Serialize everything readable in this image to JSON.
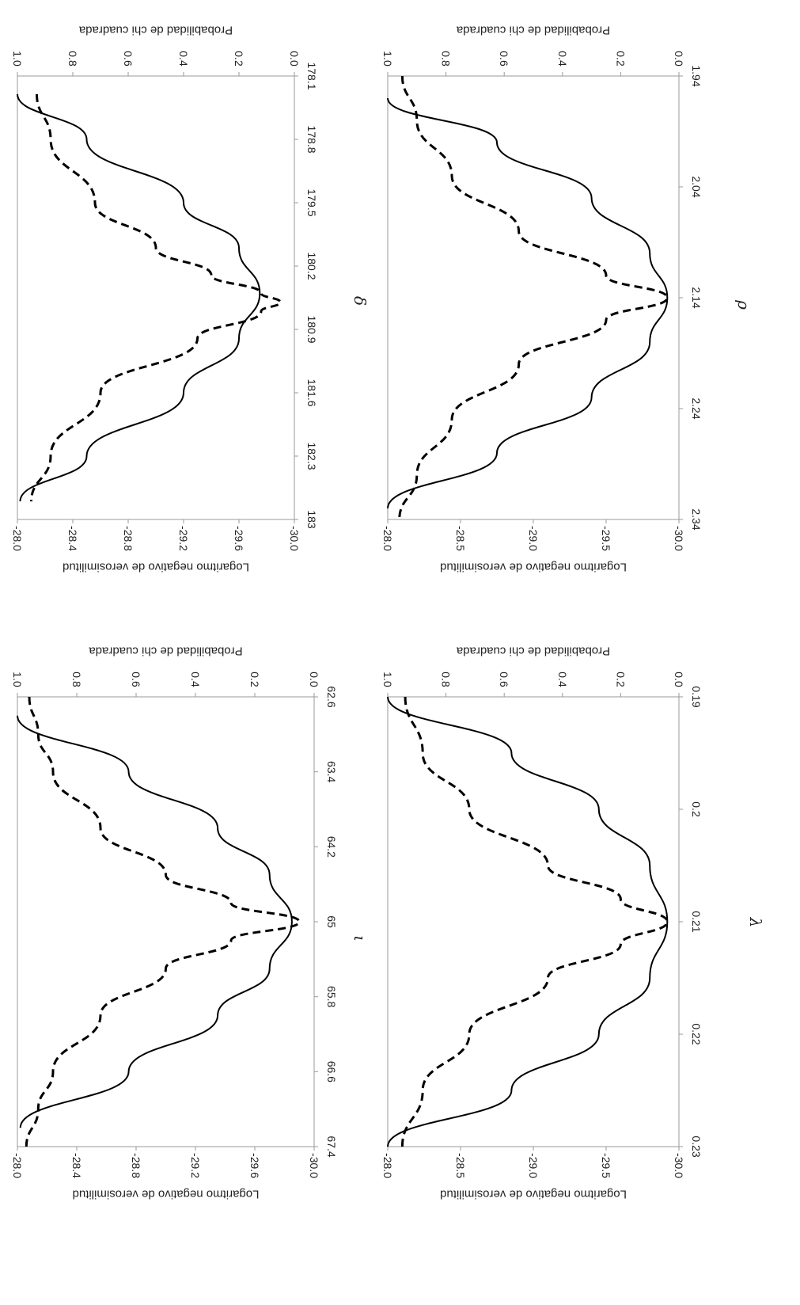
{
  "chart_data": [
    {
      "type": "line",
      "panel": "iota",
      "xlabel": "ι",
      "ylabel_left": "Logaritmo negativo de verosimilitud",
      "ylabel_right": "Probabilidad de chi cuadrada",
      "x_ticks": [
        "62.6",
        "63.4",
        "64.2",
        "65",
        "65.8",
        "66.6",
        "67.4"
      ],
      "xlim": [
        62.6,
        67.4
      ],
      "y_left_ticks": [
        "-28.0",
        "-28.4",
        "-28.8",
        "-29.2",
        "-29.6",
        "-30.0"
      ],
      "y_left_lim": [
        -30.0,
        -28.0
      ],
      "y_right_ticks": [
        "0.0",
        "0.2",
        "0.4",
        "0.6",
        "0.8",
        "1.0"
      ],
      "y_right_lim": [
        0.0,
        1.0
      ],
      "series": [
        {
          "style": "solid",
          "axis": "left",
          "x": [
            62.8,
            63.4,
            64.0,
            64.5,
            65.0,
            65.5,
            66.0,
            66.6,
            67.2
          ],
          "y": [
            -28.0,
            -28.75,
            -29.35,
            -29.7,
            -29.85,
            -29.7,
            -29.35,
            -28.75,
            -28.02
          ]
        },
        {
          "style": "dashed",
          "axis": "right",
          "x": [
            62.6,
            63.0,
            63.4,
            64.0,
            64.5,
            64.8,
            65.0,
            65.2,
            65.5,
            66.0,
            66.6,
            67.0,
            67.4
          ],
          "y": [
            0.96,
            0.93,
            0.88,
            0.72,
            0.5,
            0.28,
            0.05,
            0.28,
            0.5,
            0.72,
            0.88,
            0.93,
            0.97
          ]
        }
      ]
    },
    {
      "type": "line",
      "panel": "delta",
      "xlabel": "δ",
      "ylabel_left": "Logaritmo negativo de verosimilitud",
      "ylabel_right": "Probabilidad de chi cuadrada",
      "x_ticks": [
        "178.1",
        "178.8",
        "179.5",
        "180.2",
        "180.9",
        "181.6",
        "182.3",
        "183"
      ],
      "xlim": [
        178.1,
        183.0
      ],
      "y_left_ticks": [
        "-28.0",
        "-28.4",
        "-28.8",
        "-29.2",
        "-29.6",
        "-30.0"
      ],
      "y_left_lim": [
        -30.0,
        -28.0
      ],
      "y_right_ticks": [
        "0.0",
        "0.2",
        "0.4",
        "0.6",
        "0.8",
        "1.0"
      ],
      "y_right_lim": [
        0.0,
        1.0
      ],
      "series": [
        {
          "style": "solid",
          "axis": "left",
          "x": [
            178.3,
            178.8,
            179.5,
            180.0,
            180.5,
            181.0,
            181.6,
            182.3,
            182.8
          ],
          "y": [
            -28.0,
            -28.5,
            -29.2,
            -29.6,
            -29.75,
            -29.6,
            -29.2,
            -28.5,
            -28.02
          ]
        },
        {
          "style": "dashed",
          "axis": "right",
          "x": [
            178.3,
            178.8,
            179.5,
            180.0,
            180.3,
            180.5,
            180.6,
            180.7,
            181.0,
            181.6,
            182.3,
            182.8
          ],
          "y": [
            0.93,
            0.88,
            0.72,
            0.5,
            0.3,
            0.12,
            0.05,
            0.12,
            0.35,
            0.7,
            0.88,
            0.95
          ]
        }
      ]
    },
    {
      "type": "line",
      "panel": "lambda",
      "xlabel": "λ",
      "ylabel_left": "Logaritmo negativo de verosimilitud",
      "ylabel_right": "Probabilidad de chi cuadrada",
      "x_ticks": [
        "0.19",
        "0.2",
        "0.21",
        "0.22",
        "0.23"
      ],
      "xlim": [
        0.19,
        0.23
      ],
      "y_left_ticks": [
        "-28.0",
        "-28.5",
        "-29.0",
        "-29.5",
        "-30.0"
      ],
      "y_left_lim": [
        -30.0,
        -28.0
      ],
      "y_right_ticks": [
        "0.0",
        "0.2",
        "0.4",
        "0.6",
        "0.8",
        "1.0"
      ],
      "y_right_lim": [
        0.0,
        1.0
      ],
      "series": [
        {
          "style": "solid",
          "axis": "left",
          "x": [
            0.19,
            0.195,
            0.2,
            0.205,
            0.21,
            0.215,
            0.22,
            0.225,
            0.23
          ],
          "y": [
            -28.0,
            -28.85,
            -29.45,
            -29.8,
            -29.92,
            -29.8,
            -29.45,
            -28.85,
            -28.0
          ]
        },
        {
          "style": "dashed",
          "axis": "right",
          "x": [
            0.19,
            0.195,
            0.2,
            0.205,
            0.208,
            0.21,
            0.212,
            0.215,
            0.22,
            0.225,
            0.23
          ],
          "y": [
            0.94,
            0.88,
            0.72,
            0.45,
            0.2,
            0.04,
            0.2,
            0.45,
            0.72,
            0.88,
            0.95
          ]
        }
      ]
    },
    {
      "type": "line",
      "panel": "rho",
      "xlabel": "ρ",
      "ylabel_left": "Logaritmo negativo de verosimilitud",
      "ylabel_right": "Probabilidad de chi cuadrada",
      "x_ticks": [
        "1.94",
        "2.04",
        "2.14",
        "2.24",
        "2.34"
      ],
      "xlim": [
        1.94,
        2.34
      ],
      "y_left_ticks": [
        "-28.0",
        "-28.5",
        "-29.0",
        "-29.5",
        "-30.0"
      ],
      "y_left_lim": [
        -30.0,
        -28.0
      ],
      "y_right_ticks": [
        "0.0",
        "0.2",
        "0.4",
        "0.6",
        "0.8",
        "1.0"
      ],
      "y_right_lim": [
        0.0,
        1.0
      ],
      "series": [
        {
          "style": "solid",
          "axis": "left",
          "x": [
            1.96,
            2.0,
            2.05,
            2.1,
            2.14,
            2.18,
            2.23,
            2.28,
            2.33
          ],
          "y": [
            -28.0,
            -28.75,
            -29.4,
            -29.8,
            -29.92,
            -29.8,
            -29.4,
            -28.75,
            -28.0
          ]
        },
        {
          "style": "dashed",
          "axis": "right",
          "x": [
            1.94,
            1.98,
            2.03,
            2.08,
            2.12,
            2.14,
            2.16,
            2.2,
            2.25,
            2.3,
            2.34
          ],
          "y": [
            0.95,
            0.9,
            0.78,
            0.55,
            0.25,
            0.04,
            0.25,
            0.55,
            0.78,
            0.9,
            0.96
          ]
        }
      ]
    }
  ]
}
